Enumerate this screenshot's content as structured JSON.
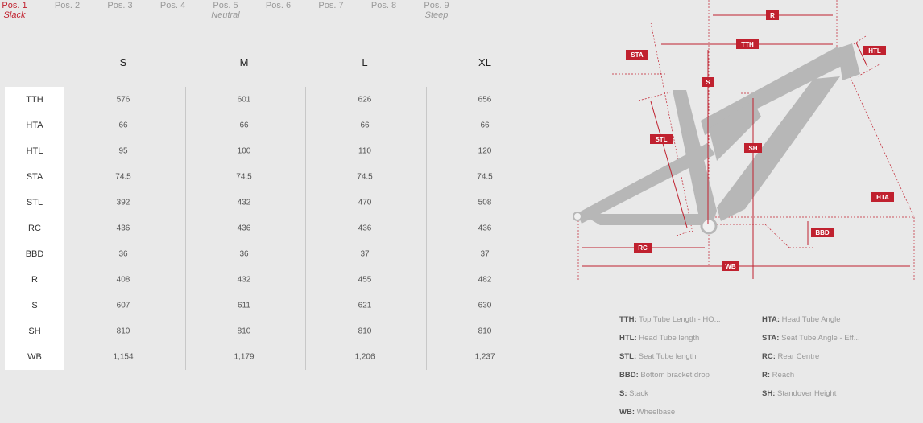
{
  "positions": [
    {
      "label": "Pos. 1",
      "sub": "Slack",
      "active": true
    },
    {
      "label": "Pos. 2",
      "sub": ""
    },
    {
      "label": "Pos. 3",
      "sub": ""
    },
    {
      "label": "Pos. 4",
      "sub": ""
    },
    {
      "label": "Pos. 5",
      "sub": "Neutral"
    },
    {
      "label": "Pos. 6",
      "sub": ""
    },
    {
      "label": "Pos. 7",
      "sub": ""
    },
    {
      "label": "Pos. 8",
      "sub": ""
    },
    {
      "label": "Pos. 9",
      "sub": "Steep"
    }
  ],
  "table": {
    "sizes": [
      "S",
      "M",
      "L",
      "XL"
    ],
    "rows": [
      {
        "label": "TTH",
        "values": [
          "576",
          "601",
          "626",
          "656"
        ]
      },
      {
        "label": "HTA",
        "values": [
          "66",
          "66",
          "66",
          "66"
        ]
      },
      {
        "label": "HTL",
        "values": [
          "95",
          "100",
          "110",
          "120"
        ]
      },
      {
        "label": "STA",
        "values": [
          "74.5",
          "74.5",
          "74.5",
          "74.5"
        ]
      },
      {
        "label": "STL",
        "values": [
          "392",
          "432",
          "470",
          "508"
        ]
      },
      {
        "label": "RC",
        "values": [
          "436",
          "436",
          "436",
          "436"
        ]
      },
      {
        "label": "BBD",
        "values": [
          "36",
          "36",
          "37",
          "37"
        ]
      },
      {
        "label": "R",
        "values": [
          "408",
          "432",
          "455",
          "482"
        ]
      },
      {
        "label": "S",
        "values": [
          "607",
          "611",
          "621",
          "630"
        ]
      },
      {
        "label": "SH",
        "values": [
          "810",
          "810",
          "810",
          "810"
        ]
      },
      {
        "label": "WB",
        "values": [
          "1,154",
          "1,179",
          "1,206",
          "1,237"
        ]
      }
    ]
  },
  "diagram_labels": {
    "R": "R",
    "TTH": "TTH",
    "STA": "STA",
    "HTL": "HTL",
    "S": "S",
    "STL": "STL",
    "SH": "SH",
    "HTA": "HTA",
    "BBD": "BBD",
    "RC": "RC",
    "WB": "WB"
  },
  "legend": [
    {
      "abbr": "TTH:",
      "text": "Top Tube Length - HO..."
    },
    {
      "abbr": "HTA:",
      "text": "Head Tube Angle"
    },
    {
      "abbr": "HTL:",
      "text": "Head Tube length"
    },
    {
      "abbr": "STA:",
      "text": "Seat Tube Angle - Eff..."
    },
    {
      "abbr": "STL:",
      "text": "Seat Tube length"
    },
    {
      "abbr": "RC:",
      "text": "Rear Centre"
    },
    {
      "abbr": "BBD:",
      "text": "Bottom bracket drop"
    },
    {
      "abbr": "R:",
      "text": "Reach"
    },
    {
      "abbr": "S:",
      "text": "Stack"
    },
    {
      "abbr": "SH:",
      "text": "Standover Height"
    },
    {
      "abbr": "WB:",
      "text": "Wheelbase"
    }
  ],
  "colors": {
    "accent": "#c0212f",
    "frame": "#b5b5b5",
    "background": "#e9e9e9"
  }
}
